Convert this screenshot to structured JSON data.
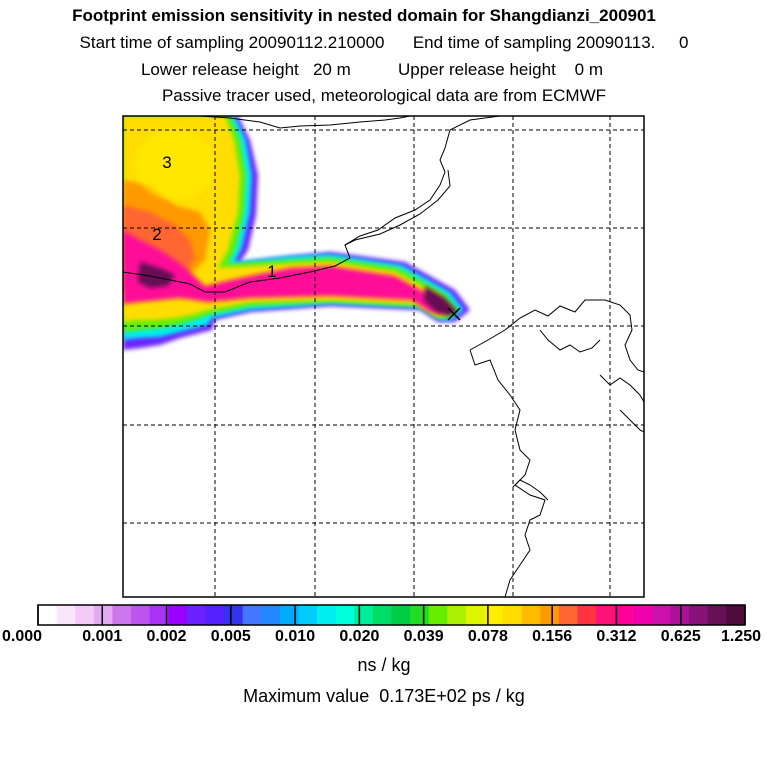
{
  "header": {
    "title": "Footprint emission sensitivity in nested domain for Shangdianzi_200901",
    "sampling_line": "Start time of sampling 20090112.210000      End time of sampling 20090113.     0",
    "release_line": "Lower release height   20 m          Upper release height    0 m",
    "tracer_line": "Passive tracer used, meteorological data are from ECMWF"
  },
  "map": {
    "contour_labels": [
      "3",
      "2",
      "1"
    ],
    "colors": {
      "white": "#ffffff",
      "pale_violet": "#eec8f2",
      "violet": "#cc66ee",
      "purple": "#9900ff",
      "blue_violet": "#5a2cff",
      "blue": "#2a6eff",
      "sky": "#00aaff",
      "cyan": "#00ffee",
      "teal": "#00e699",
      "green": "#5add1a",
      "yellow_green": "#d5f000",
      "yellow": "#ffee00",
      "orange": "#ffaa00",
      "red": "#ff3344",
      "magenta": "#ff1199",
      "dark_magenta": "#aa1177",
      "dark_purple": "#4d0a3a"
    }
  },
  "colorbar": {
    "ticks": [
      "0.000",
      "0.001",
      "0.002",
      "0.005",
      "0.010",
      "0.020",
      "0.039",
      "0.078",
      "0.156",
      "0.312",
      "0.625",
      "1.250"
    ],
    "colors": [
      "#ffffff",
      "#fae6fb",
      "#f2ccf7",
      "#e6aaf2",
      "#cc77ee",
      "#bb55ee",
      "#aa33f5",
      "#9900ff",
      "#6a20ff",
      "#5522ff",
      "#3333ee",
      "#4477ff",
      "#2288ff",
      "#00aaff",
      "#00ccff",
      "#00eeee",
      "#00ffdd",
      "#00ee99",
      "#00dd66",
      "#00cc44",
      "#22dd22",
      "#66ee00",
      "#aaf000",
      "#ddf500",
      "#ffee00",
      "#ffdd00",
      "#ffbb00",
      "#ff9900",
      "#ff6633",
      "#ff3344",
      "#ff1177",
      "#ff0099",
      "#ee00aa",
      "#cc11aa",
      "#aa1199",
      "#881177",
      "#661155",
      "#4d0a3a"
    ],
    "units": "ns / kg",
    "max_value": "Maximum value  0.173E+02 ps / kg"
  }
}
